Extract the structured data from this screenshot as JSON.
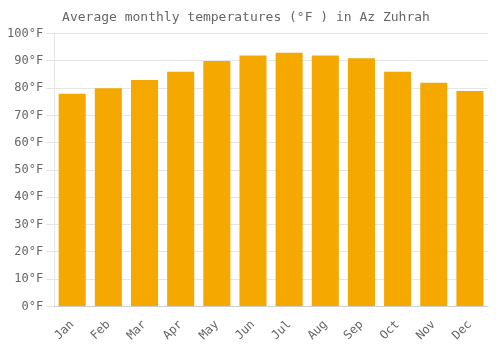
{
  "chart_data": {
    "type": "bar",
    "title": "Average monthly temperatures (°F ) in Az Zuhrah",
    "categories": [
      "Jan",
      "Feb",
      "Mar",
      "Apr",
      "May",
      "Jun",
      "Jul",
      "Aug",
      "Sep",
      "Oct",
      "Nov",
      "Dec"
    ],
    "values": [
      78,
      80,
      83,
      86,
      90,
      92,
      93,
      92,
      91,
      86,
      82,
      79
    ],
    "color": "#F5A800",
    "ylim": [
      0,
      100
    ],
    "yticks": [
      {
        "value": 0,
        "label": "0°F"
      },
      {
        "value": 10,
        "label": "10°F"
      },
      {
        "value": 20,
        "label": "20°F"
      },
      {
        "value": 30,
        "label": "30°F"
      },
      {
        "value": 40,
        "label": "40°F"
      },
      {
        "value": 50,
        "label": "50°F"
      },
      {
        "value": 60,
        "label": "60°F"
      },
      {
        "value": 70,
        "label": "70°F"
      },
      {
        "value": 80,
        "label": "80°F"
      },
      {
        "value": 90,
        "label": "90°F"
      },
      {
        "value": 100,
        "label": "100°F"
      }
    ],
    "grid": true
  }
}
